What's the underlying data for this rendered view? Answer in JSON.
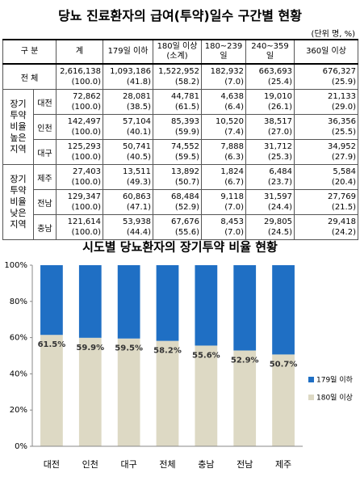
{
  "title": "당뇨 진료환자의 급여(투약)일수 구간별 현황",
  "unit": "(단위 명, %)",
  "table": {
    "header": [
      "구 분",
      "계",
      "179일 이하",
      "180일 이상\n(소계)",
      "180~239일",
      "240~359일",
      "360일 이상"
    ],
    "total": {
      "label": "전 체",
      "cells": [
        [
          "2,616,138",
          "(100.0)"
        ],
        [
          "1,093,186",
          "(41.8)"
        ],
        [
          "1,522,952",
          "(58.2)"
        ],
        [
          "182,932",
          "(7.0)"
        ],
        [
          "663,693",
          "(25.4)"
        ],
        [
          "676,327",
          "(25.9)"
        ]
      ]
    },
    "groups": [
      {
        "label": "장기 투약 비율 높은 지역",
        "rows": [
          {
            "region": "대전",
            "cells": [
              [
                "72,862",
                "(100.0)"
              ],
              [
                "28,081",
                "(38.5)"
              ],
              [
                "44,781",
                "(61.5)"
              ],
              [
                "4,638",
                "(6.4)"
              ],
              [
                "19,010",
                "(26.1)"
              ],
              [
                "21,133",
                "(29.0)"
              ]
            ]
          },
          {
            "region": "인천",
            "cells": [
              [
                "142,497",
                "(100.0)"
              ],
              [
                "57,104",
                "(40.1)"
              ],
              [
                "85,393",
                "(59.9)"
              ],
              [
                "10,520",
                "(7.4)"
              ],
              [
                "38,517",
                "(27.0)"
              ],
              [
                "36,356",
                "(25.5)"
              ]
            ]
          },
          {
            "region": "대구",
            "cells": [
              [
                "125,293",
                "(100.0)"
              ],
              [
                "50,741",
                "(40.5)"
              ],
              [
                "74,552",
                "(59.5)"
              ],
              [
                "7,888",
                "(6.3)"
              ],
              [
                "31,712",
                "(25.3)"
              ],
              [
                "34,952",
                "(27.9)"
              ]
            ]
          }
        ]
      },
      {
        "label": "장기 투약 비율 낮은 지역",
        "rows": [
          {
            "region": "제주",
            "cells": [
              [
                "27,403",
                "(100.0)"
              ],
              [
                "13,511",
                "(49.3)"
              ],
              [
                "13,892",
                "(50.7)"
              ],
              [
                "1,824",
                "(6.7)"
              ],
              [
                "6,484",
                "(23.7)"
              ],
              [
                "5,584",
                "(20.4)"
              ]
            ]
          },
          {
            "region": "전남",
            "cells": [
              [
                "129,347",
                "(100.0)"
              ],
              [
                "60,863",
                "(47.1)"
              ],
              [
                "68,484",
                "(52.9)"
              ],
              [
                "9,118",
                "(7.0)"
              ],
              [
                "31,597",
                "(24.4)"
              ],
              [
                "27,769",
                "(21.5)"
              ]
            ]
          },
          {
            "region": "충남",
            "cells": [
              [
                "121,614",
                "(100.0)"
              ],
              [
                "53,938",
                "(44.4)"
              ],
              [
                "67,676",
                "(55.6)"
              ],
              [
                "8,453",
                "(7.0)"
              ],
              [
                "29,805",
                "(24.5)"
              ],
              [
                "29,418",
                "(24.2)"
              ]
            ]
          }
        ]
      }
    ]
  },
  "chart_data": {
    "type": "stacked_bar",
    "title": "시도별 당뇨환자의 장기투약 비율 현황",
    "categories": [
      "대전",
      "인천",
      "대구",
      "전체",
      "충남",
      "전남",
      "제주"
    ],
    "series": [
      {
        "name": "180일 이상",
        "color": "#ddd9c4",
        "values": [
          61.5,
          59.9,
          59.5,
          58.2,
          55.6,
          52.9,
          50.7
        ],
        "value_labels": [
          "61.5%",
          "59.9%",
          "59.5%",
          "58.2%",
          "55.6%",
          "52.9%",
          "50.7%"
        ]
      },
      {
        "name": "179일 이하",
        "color": "#1f6fc4",
        "values": [
          38.5,
          40.1,
          40.5,
          41.8,
          44.4,
          47.1,
          49.3
        ]
      }
    ],
    "ylim": [
      0,
      100
    ],
    "yticks": [
      {
        "value": 0,
        "label": "0%"
      },
      {
        "value": 20,
        "label": "20%"
      },
      {
        "value": 40,
        "label": "40%"
      },
      {
        "value": 60,
        "label": "60%"
      },
      {
        "value": 80,
        "label": "80%"
      },
      {
        "value": 100,
        "label": "100%"
      }
    ],
    "grid": false
  }
}
